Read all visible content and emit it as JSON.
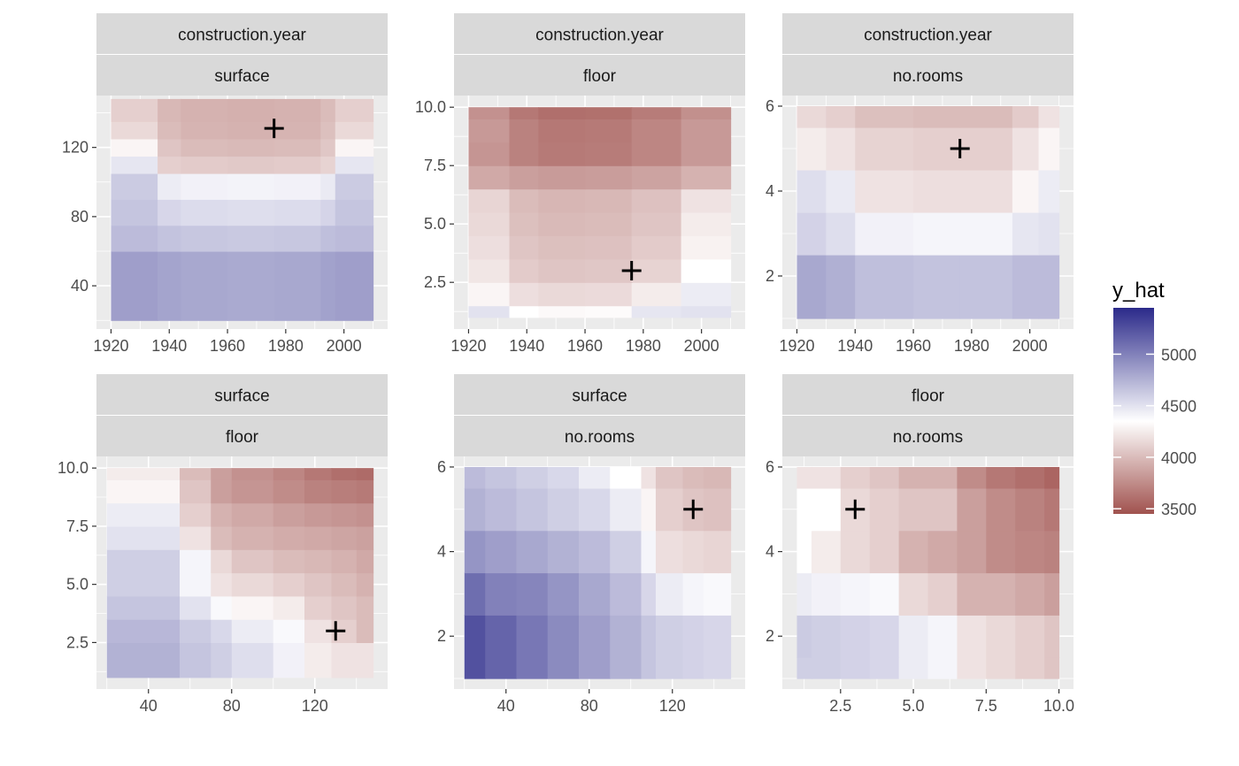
{
  "colors": {
    "low": "#a0524e",
    "mid": "#ffffff",
    "high": "#2b2a8a",
    "strip": "#d9d9d9",
    "panel": "#ebebeb",
    "marker": "#000000"
  },
  "legend": {
    "title": "y_hat",
    "range": [
      3450,
      5450
    ],
    "midpoint": 4350,
    "breaks": [
      {
        "value": 5000,
        "label": "5000"
      },
      {
        "value": 4500,
        "label": "4500"
      },
      {
        "value": 4000,
        "label": "4000"
      },
      {
        "value": 3500,
        "label": "3500"
      }
    ]
  },
  "chart_data": [
    {
      "type": "heatmap",
      "strip_top": "construction.year",
      "strip_bottom": "surface",
      "xlabel": "",
      "ylabel": "",
      "xlim": [
        1915,
        2015
      ],
      "ylim": [
        15,
        150
      ],
      "xticks": [
        1920,
        1940,
        1960,
        1980,
        2000
      ],
      "yticks": [
        40,
        80,
        120
      ],
      "x_edges": [
        1920,
        1936,
        1944,
        1960,
        1976,
        1992,
        1997,
        2010
      ],
      "y_edges": [
        20,
        60,
        75,
        90,
        105,
        115,
        125,
        135,
        148
      ],
      "z": [
        [
          4850,
          4820,
          4800,
          4790,
          4800,
          4830,
          4850
        ],
        [
          4700,
          4660,
          4640,
          4630,
          4640,
          4680,
          4700
        ],
        [
          4650,
          4560,
          4530,
          4520,
          4530,
          4570,
          4650
        ],
        [
          4620,
          4450,
          4420,
          4410,
          4420,
          4460,
          4620
        ],
        [
          4480,
          4100,
          4080,
          4070,
          4080,
          4120,
          4480
        ],
        [
          4300,
          4050,
          4000,
          3990,
          4000,
          4060,
          4300
        ],
        [
          4150,
          4000,
          3960,
          3950,
          3960,
          4020,
          4150
        ],
        [
          4100,
          3980,
          3950,
          3940,
          3950,
          4000,
          4100
        ]
      ],
      "marker": {
        "x": 1976,
        "y": 131
      }
    },
    {
      "type": "heatmap",
      "strip_top": "construction.year",
      "strip_bottom": "floor",
      "xlabel": "",
      "ylabel": "",
      "xlim": [
        1915,
        2015
      ],
      "ylim": [
        0.5,
        10.5
      ],
      "xticks": [
        1920,
        1940,
        1960,
        1980,
        2000
      ],
      "yticks": [
        2.5,
        5.0,
        7.5,
        10.0
      ],
      "ytick_labels": [
        "2.5",
        "5.0",
        "7.5",
        "10.0"
      ],
      "x_edges": [
        1920,
        1934,
        1944,
        1960,
        1976,
        1993,
        2010
      ],
      "y_edges": [
        1,
        1.5,
        2.5,
        3.5,
        4.5,
        5.5,
        6.5,
        7.5,
        8.5,
        9.5,
        10
      ],
      "z": [
        [
          4500,
          4350,
          4320,
          4330,
          4480,
          4500
        ],
        [
          4300,
          4180,
          4150,
          4160,
          4250,
          4450
        ],
        [
          4220,
          4080,
          4050,
          4060,
          4120,
          4350
        ],
        [
          4180,
          4050,
          4020,
          4030,
          4080,
          4280
        ],
        [
          4150,
          4020,
          3990,
          4000,
          4050,
          4250
        ],
        [
          4130,
          4000,
          3970,
          3980,
          4030,
          4200
        ],
        [
          3900,
          3850,
          3830,
          3840,
          3870,
          3950
        ],
        [
          3800,
          3700,
          3660,
          3670,
          3720,
          3820
        ],
        [
          3820,
          3700,
          3650,
          3660,
          3720,
          3820
        ],
        [
          3780,
          3650,
          3600,
          3610,
          3670,
          3770
        ]
      ],
      "marker": {
        "x": 1976,
        "y": 3
      }
    },
    {
      "type": "heatmap",
      "strip_top": "construction.year",
      "strip_bottom": "no.rooms",
      "xlabel": "",
      "ylabel": "",
      "xlim": [
        1915,
        2015
      ],
      "ylim": [
        0.75,
        6.25
      ],
      "xticks": [
        1920,
        1940,
        1960,
        1980,
        2000
      ],
      "yticks": [
        2,
        4,
        6
      ],
      "x_edges": [
        1920,
        1930,
        1940,
        1960,
        1976,
        1994,
        2003,
        2010
      ],
      "y_edges": [
        1,
        2.5,
        3.5,
        4.5,
        5.5,
        6
      ],
      "z": [
        [
          4800,
          4760,
          4680,
          4660,
          4660,
          4700,
          4700
        ],
        [
          4580,
          4520,
          4420,
          4400,
          4400,
          4480,
          4500
        ],
        [
          4520,
          4460,
          4200,
          4180,
          4180,
          4300,
          4450
        ],
        [
          4250,
          4200,
          4120,
          4100,
          4100,
          4200,
          4300
        ],
        [
          4150,
          4100,
          4020,
          4000,
          4000,
          4080,
          4200
        ]
      ],
      "marker": {
        "x": 1976,
        "y": 5
      }
    },
    {
      "type": "heatmap",
      "strip_top": "surface",
      "strip_bottom": "floor",
      "xlabel": "",
      "ylabel": "",
      "xlim": [
        15,
        155
      ],
      "ylim": [
        0.5,
        10.5
      ],
      "xticks": [
        40,
        80,
        120
      ],
      "yticks": [
        2.5,
        5.0,
        7.5,
        10.0
      ],
      "ytick_labels": [
        "2.5",
        "5.0",
        "7.5",
        "10.0"
      ],
      "x_edges": [
        20,
        55,
        70,
        80,
        100,
        115,
        128,
        140,
        148
      ],
      "y_edges": [
        1,
        2.5,
        3.5,
        4.5,
        5.5,
        6.5,
        7.5,
        8.5,
        9.5,
        10
      ],
      "z": [
        [
          4750,
          4650,
          4600,
          4520,
          4420,
          4250,
          4200,
          4200
        ],
        [
          4720,
          4620,
          4550,
          4450,
          4380,
          4200,
          4100,
          4000
        ],
        [
          4650,
          4500,
          4380,
          4300,
          4250,
          4100,
          4050,
          4000
        ],
        [
          4600,
          4400,
          4200,
          4150,
          4100,
          4050,
          4000,
          3950
        ],
        [
          4600,
          4400,
          4150,
          4050,
          4000,
          3980,
          3950,
          3900
        ],
        [
          4500,
          4200,
          4000,
          3950,
          3920,
          3900,
          3880,
          3860
        ],
        [
          4450,
          4100,
          3950,
          3900,
          3850,
          3820,
          3800,
          3780
        ],
        [
          4300,
          4050,
          3850,
          3800,
          3750,
          3700,
          3680,
          3660
        ],
        [
          4250,
          4000,
          3850,
          3780,
          3720,
          3650,
          3600,
          3580
        ]
      ],
      "marker": {
        "x": 130,
        "y": 3
      }
    },
    {
      "type": "heatmap",
      "strip_top": "surface",
      "strip_bottom": "no.rooms",
      "xlabel": "",
      "ylabel": "",
      "xlim": [
        15,
        155
      ],
      "ylim": [
        0.75,
        6.25
      ],
      "xticks": [
        40,
        80,
        120
      ],
      "yticks": [
        2,
        4,
        6
      ],
      "x_edges": [
        20,
        30,
        45,
        60,
        75,
        90,
        105,
        112,
        125,
        135,
        142,
        148
      ],
      "y_edges": [
        1,
        2.5,
        3.5,
        4.5,
        5.5,
        6
      ],
      "z": [
        [
          5250,
          5150,
          5050,
          4950,
          4850,
          4750,
          4650,
          4600,
          4580,
          4560,
          4560
        ],
        [
          5100,
          5000,
          4980,
          4900,
          4800,
          4700,
          4560,
          4450,
          4400,
          4380,
          4380
        ],
        [
          4900,
          4850,
          4800,
          4750,
          4700,
          4600,
          4400,
          4180,
          4150,
          4130,
          4130
        ],
        [
          4750,
          4700,
          4650,
          4600,
          4550,
          4450,
          4300,
          4100,
          4050,
          4030,
          4030
        ],
        [
          4700,
          4650,
          4600,
          4550,
          4450,
          4350,
          4200,
          4050,
          4000,
          3980,
          3980
        ]
      ],
      "marker": {
        "x": 130,
        "y": 5
      }
    },
    {
      "type": "heatmap",
      "strip_top": "floor",
      "strip_bottom": "no.rooms",
      "xlabel": "",
      "ylabel": "",
      "xlim": [
        0.5,
        10.5
      ],
      "ylim": [
        0.75,
        6.25
      ],
      "xticks": [
        2.5,
        5.0,
        7.5,
        10.0
      ],
      "xtick_labels": [
        "2.5",
        "5.0",
        "7.5",
        "10.0"
      ],
      "yticks": [
        2,
        4,
        6
      ],
      "x_edges": [
        1,
        1.5,
        2.5,
        3.5,
        4.5,
        5.5,
        6.5,
        7.5,
        8.5,
        9.5,
        10
      ],
      "y_edges": [
        1,
        1.5,
        2.5,
        3.5,
        4.5,
        5.5,
        6
      ],
      "z": [
        [
          4600,
          4600,
          4580,
          4560,
          4450,
          4400,
          4200,
          4150,
          4100,
          4050
        ],
        [
          4620,
          4600,
          4580,
          4560,
          4450,
          4400,
          4200,
          4150,
          4100,
          4050
        ],
        [
          4450,
          4420,
          4400,
          4380,
          4150,
          4100,
          3950,
          3950,
          3900,
          3850
        ],
        [
          4350,
          4250,
          4150,
          4100,
          3950,
          3900,
          3850,
          3750,
          3720,
          3700
        ],
        [
          4350,
          4350,
          4150,
          4100,
          4050,
          4050,
          3850,
          3750,
          3700,
          3650
        ],
        [
          4200,
          4200,
          4100,
          4050,
          3950,
          3950,
          3750,
          3650,
          3600,
          3550
        ]
      ],
      "marker": {
        "x": 3,
        "y": 5
      }
    }
  ]
}
